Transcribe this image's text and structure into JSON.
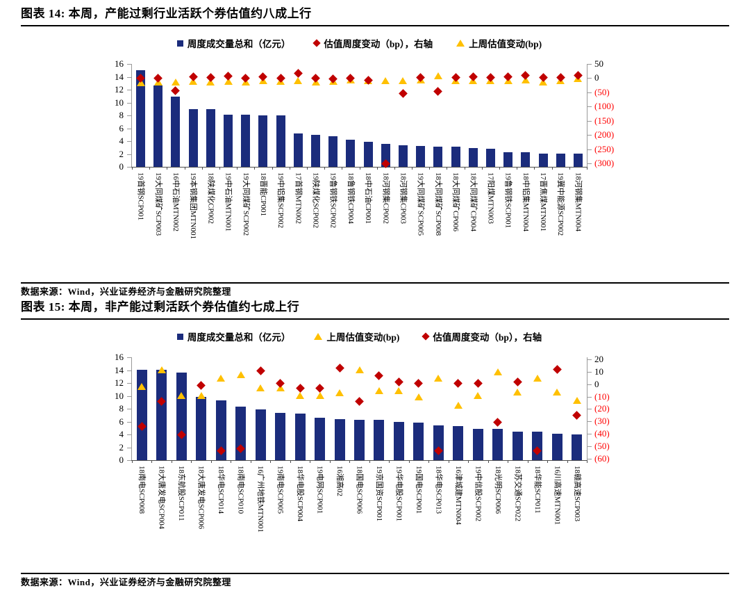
{
  "colors": {
    "bar": "#1b2c7c",
    "diamond": "#c00000",
    "triangle": "#ffc000",
    "axis_line": "#999999",
    "axis_dark": "#4d4d4d",
    "negative_label": "#ff0000",
    "text": "#000000"
  },
  "figures": [
    {
      "title": "图表 14:  本周，产能过剩行业活跃个券估值约八成上行",
      "source": "数据来源：Wind，兴业证券经济与金融研究院整理"
    },
    {
      "title": "图表 15:  本周，非产能过剩活跃个券估值约七成上行",
      "source": "数据来源：Wind，兴业证券经济与金融研究院整理"
    }
  ],
  "chart_data": [
    {
      "type": "bar",
      "title": "本周，产能过剩行业活跃个券估值约八成上行",
      "legend_position": "top",
      "legend_order": [
        0,
        1,
        2
      ],
      "left_axis": {
        "min": 0,
        "max": 16,
        "step": 2,
        "labels": [
          "0",
          "2",
          "4",
          "6",
          "8",
          "10",
          "12",
          "14",
          "16"
        ]
      },
      "right_axis": {
        "labels": [
          "50",
          "0",
          "(50)",
          "(100)",
          "(150)",
          "(200)",
          "(250)",
          "(300)"
        ],
        "values": [
          50,
          0,
          -50,
          -100,
          -150,
          -200,
          -250,
          -300
        ],
        "left_offset": 13.8,
        "scale": 22.6
      },
      "categories": [
        "19首钢SCP001",
        "19大同煤矿SCP003",
        "16中石油MTN002",
        "19本钢集团MTN001",
        "18陕煤化CP002",
        "19中石油MTN001",
        "19大同煤矿SCP002",
        "18晋能CP001",
        "19中铝集SCP002",
        "17首钢MTN002",
        "19陕煤化SCP002",
        "19鲁钢铁SCP002",
        "18鲁钢铁CP004",
        "18中石油CP001",
        "18河钢集CP002",
        "18河钢集CP003",
        "19大同煤矿SCP005",
        "18大同煤矿SCP008",
        "18大同煤矿CP006",
        "18大同煤矿CP004",
        "17阳煤MTN003",
        "19鲁钢铁SCP001",
        "18中铝集MTN004",
        "17晋焦煤MTN001",
        "19冀中能源SCP002",
        "18河钢集MTN004"
      ],
      "series": [
        {
          "name": "周度成交量总和（亿元）",
          "type": "bar",
          "axis": "left",
          "values": [
            15.0,
            12.6,
            10.9,
            9.0,
            9.0,
            8.1,
            8.1,
            8.0,
            8.0,
            5.2,
            5.0,
            4.8,
            4.2,
            3.9,
            3.6,
            3.4,
            3.2,
            3.1,
            3.1,
            2.9,
            2.8,
            2.3,
            2.3,
            2.1,
            2.1,
            2.1
          ]
        },
        {
          "name": "估值周度变动（bp），右轴",
          "type": "diamond",
          "axis": "right",
          "values": [
            0,
            0,
            -45,
            5,
            2,
            8,
            0,
            5,
            0,
            17,
            0,
            -4,
            0,
            -7,
            -300,
            -55,
            2,
            -48,
            2,
            4,
            2,
            4,
            10,
            2,
            2,
            10
          ]
        },
        {
          "name": "上周估值变动(bp)",
          "type": "triangle",
          "axis": "right",
          "values": [
            -16,
            -14,
            -14,
            -11,
            -13,
            -11,
            -13,
            -9,
            -12,
            -9,
            -13,
            -11,
            -7,
            -9,
            -9,
            -10,
            -7,
            7,
            -10,
            -10,
            -9,
            -10,
            -7,
            -14,
            -10,
            -2
          ]
        }
      ]
    },
    {
      "type": "bar",
      "title": "本周，非产能过剩活跃个券估值约七成上行",
      "legend_position": "top",
      "legend_order": [
        0,
        2,
        1
      ],
      "left_axis": {
        "min": 0,
        "max": 16,
        "step": 2,
        "labels": [
          "0",
          "2",
          "4",
          "6",
          "8",
          "10",
          "12",
          "14",
          "16"
        ]
      },
      "right_axis": {
        "labels": [
          "20",
          "10",
          "0",
          "(10)",
          "(20)",
          "(30)",
          "(40)",
          "(50)",
          "(60)"
        ],
        "values": [
          20,
          10,
          0,
          -10,
          -20,
          -30,
          -40,
          -50,
          -60
        ],
        "left_offset": 11.8,
        "scale": 5.2
      },
      "categories": [
        "18南电SCP008",
        "18大唐发电SCP004",
        "18东航股SCP011",
        "18大唐发电SCP006",
        "18华电SCP014",
        "18南电SCP010",
        "16广州地铁MTN001",
        "19南电SCP005",
        "18华电股SCP004",
        "19电网SCP001",
        "16湘高02",
        "18国电SCP006",
        "19京国资SCP001",
        "19华电股SCP001",
        "19国电SCP001",
        "18华电SCP013",
        "16津城建MTN004",
        "19中信股SCP002",
        "18光明SCP006",
        "18苏交通SCP022",
        "18华能SCP011",
        "16川高速MTN001",
        "18赣高速SCP003"
      ],
      "series": [
        {
          "name": "周度成交量总和（亿元）",
          "type": "bar",
          "axis": "left",
          "values": [
            14.1,
            14.1,
            13.6,
            9.8,
            9.3,
            8.3,
            7.9,
            7.3,
            7.2,
            6.6,
            6.4,
            6.3,
            6.3,
            5.9,
            5.8,
            5.4,
            5.3,
            4.9,
            4.9,
            4.4,
            4.4,
            4.1,
            4.0
          ]
        },
        {
          "name": "估值周度变动（bp），右轴",
          "type": "diamond",
          "axis": "right",
          "values": [
            -34,
            -14,
            -41,
            -1,
            -54,
            -52,
            11,
            1,
            -3,
            -3,
            13,
            -14,
            7,
            2,
            1,
            -54,
            1,
            1,
            -31,
            2,
            -54,
            12,
            -25
          ]
        },
        {
          "name": "上周估值变动(bp)",
          "type": "triangle",
          "axis": "right",
          "values": [
            -2,
            12,
            -9,
            -9,
            5,
            8,
            -3,
            -3,
            -9,
            -9,
            -7,
            12,
            -5,
            -5,
            -10,
            5,
            -17,
            -9,
            10,
            -6,
            5,
            -6,
            -13
          ]
        }
      ]
    }
  ]
}
